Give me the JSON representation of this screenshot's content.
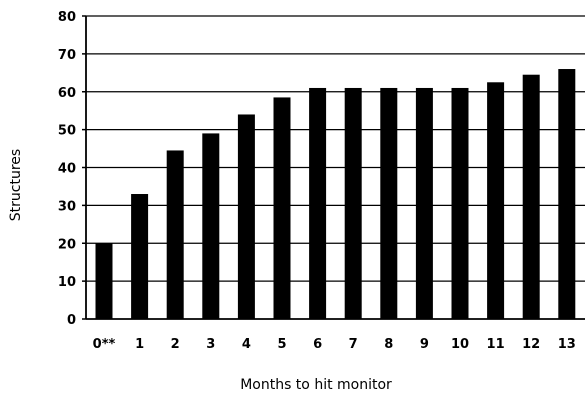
{
  "chart_data": {
    "type": "bar",
    "title": "",
    "xlabel": "Months to hit monitor",
    "ylabel": "Structures",
    "categories": [
      "0**",
      "1",
      "2",
      "3",
      "4",
      "5",
      "6",
      "7",
      "8",
      "9",
      "10",
      "11",
      "12",
      "13"
    ],
    "values": [
      20,
      33,
      44.5,
      49,
      54,
      58.5,
      61,
      61,
      61,
      61,
      61,
      62.5,
      64.5,
      66
    ],
    "ylim": [
      0,
      80
    ],
    "yticks": [
      "0",
      "10",
      "20",
      "30",
      "40",
      "50",
      "60",
      "70",
      "80"
    ],
    "grid": "horizontal",
    "colors": {
      "bar": "#000000",
      "grid": "#000000",
      "axis": "#000000"
    }
  }
}
